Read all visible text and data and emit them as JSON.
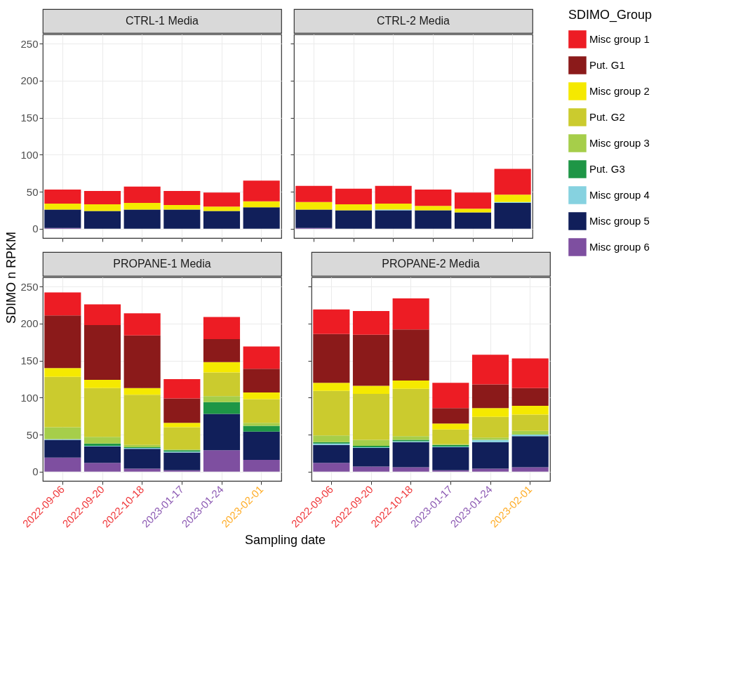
{
  "chart_data": [
    {
      "type": "bar",
      "title": "CTRL-1 Media",
      "ylabel": "SDIMO n RPKM",
      "stacked": true,
      "grid": true,
      "tick_labels": "y",
      "legend": "right",
      "legend_title": "SDIMO_Group",
      "categories": [
        "2022-09-06",
        "2022-09-20",
        "2022-10-18",
        "2023-01-17",
        "2023-01-24",
        "2023-02-01"
      ],
      "ylim": [
        -12.5,
        262.5
      ],
      "yticks": [
        0,
        50,
        100,
        150,
        200,
        250
      ],
      "series": [
        {
          "name": "Misc group 6",
          "color": "#7e4fa0",
          "values": [
            1,
            null,
            null,
            null,
            null,
            null
          ]
        },
        {
          "name": "Misc group 5",
          "color": "#111f5a",
          "values": [
            25,
            24,
            26,
            26,
            24,
            29
          ]
        },
        {
          "name": "Misc group 4",
          "color": "#86d2e0",
          "values": [
            null,
            null,
            null,
            null,
            null,
            null
          ]
        },
        {
          "name": "Put. G3",
          "color": "#1e9646",
          "values": [
            null,
            null,
            null,
            null,
            null,
            null
          ]
        },
        {
          "name": "Misc group 3",
          "color": "#a6ce4a",
          "values": [
            null,
            null,
            null,
            null,
            null,
            null
          ]
        },
        {
          "name": "Put. G2",
          "color": "#cbcb2e",
          "values": [
            null,
            null,
            null,
            null,
            null,
            null
          ]
        },
        {
          "name": "Misc group 2",
          "color": "#f5e900",
          "values": [
            8,
            9,
            9,
            6,
            6,
            8
          ]
        },
        {
          "name": "Put. G1",
          "color": "#8b1a1a",
          "values": [
            null,
            null,
            null,
            null,
            null,
            null
          ]
        },
        {
          "name": "Misc group 1",
          "color": "#ed1c24",
          "values": [
            19,
            18,
            22,
            19,
            19,
            28
          ]
        }
      ]
    },
    {
      "type": "bar",
      "title": "CTRL-2 Media",
      "stacked": true,
      "grid": true,
      "tick_labels": false,
      "categories": [
        "2022-09-06",
        "2022-09-20",
        "2022-10-18",
        "2023-01-17",
        "2023-01-24",
        "2023-02-01"
      ],
      "ylim": [
        -12.5,
        262.5
      ],
      "yticks": [
        0,
        50,
        100,
        150,
        200,
        250
      ],
      "series": [
        {
          "color": "#7e4fa0",
          "values": [
            1,
            null,
            null,
            null,
            null,
            null
          ]
        },
        {
          "color": "#111f5a",
          "values": [
            25,
            25,
            25,
            25,
            22,
            35
          ]
        },
        {
          "color": "#86d2e0",
          "values": [
            null,
            null,
            1,
            null,
            null,
            1
          ]
        },
        {
          "color": "#f5e900",
          "values": [
            10,
            8,
            8,
            6,
            5,
            10
          ]
        },
        {
          "color": "#ed1c24",
          "values": [
            22,
            21,
            24,
            22,
            22,
            35
          ]
        }
      ]
    },
    {
      "type": "bar",
      "title": "PROPANE-1 Media",
      "xlabel": "Sampling date",
      "stacked": true,
      "grid": true,
      "categories": [
        "2022-09-06",
        "2022-09-20",
        "2022-10-18",
        "2023-01-17",
        "2023-01-24",
        "2023-02-01"
      ],
      "ylim": [
        -12.5,
        262.5
      ],
      "yticks": [
        0,
        50,
        100,
        150,
        200,
        250
      ],
      "series": [
        {
          "color": "#7e4fa0",
          "values": [
            19,
            12,
            4,
            2,
            29,
            16
          ]
        },
        {
          "color": "#111f5a",
          "values": [
            24,
            22,
            27,
            24,
            49,
            38
          ]
        },
        {
          "color": "#86d2e0",
          "values": [
            1,
            1,
            1,
            1,
            null,
            null
          ]
        },
        {
          "color": "#1e9646",
          "values": [
            null,
            3,
            1,
            2,
            16,
            8
          ]
        },
        {
          "color": "#a6ce4a",
          "values": [
            16,
            9,
            3,
            1,
            8,
            4
          ]
        },
        {
          "color": "#cbcb2e",
          "values": [
            68,
            66,
            68,
            30,
            32,
            32
          ]
        },
        {
          "color": "#f5e900",
          "values": [
            12,
            11,
            9,
            6,
            14,
            9
          ]
        },
        {
          "color": "#8b1a1a",
          "values": [
            71,
            74,
            71,
            33,
            31,
            32
          ]
        },
        {
          "color": "#ed1c24",
          "values": [
            31,
            28,
            30,
            26,
            30,
            30
          ]
        }
      ]
    },
    {
      "type": "bar",
      "title": "PROPANE-2 Media",
      "stacked": true,
      "grid": true,
      "tick_labels": "x",
      "categories": [
        "2022-09-06",
        "2022-09-20",
        "2022-10-18",
        "2023-01-17",
        "2023-01-24",
        "2023-02-01"
      ],
      "ylim": [
        -12.5,
        262.5
      ],
      "yticks": [
        0,
        50,
        100,
        150,
        200,
        250
      ],
      "series": [
        {
          "color": "#7e4fa0",
          "values": [
            12,
            7,
            6,
            2,
            4,
            6
          ]
        },
        {
          "color": "#111f5a",
          "values": [
            24,
            25,
            34,
            31,
            36,
            42
          ]
        },
        {
          "color": "#86d2e0",
          "values": [
            2,
            1,
            1,
            1,
            3,
            2
          ]
        },
        {
          "color": "#1e9646",
          "values": [
            2,
            2,
            2,
            2,
            null,
            null
          ]
        },
        {
          "color": "#a6ce4a",
          "values": [
            9,
            8,
            5,
            1,
            3,
            5
          ]
        },
        {
          "color": "#cbcb2e",
          "values": [
            60,
            62,
            64,
            20,
            28,
            22
          ]
        },
        {
          "color": "#f5e900",
          "values": [
            11,
            11,
            11,
            8,
            12,
            12
          ]
        },
        {
          "color": "#8b1a1a",
          "values": [
            66,
            69,
            69,
            21,
            32,
            24
          ]
        },
        {
          "color": "#ed1c24",
          "values": [
            33,
            32,
            42,
            34,
            40,
            40
          ]
        }
      ]
    }
  ]
}
